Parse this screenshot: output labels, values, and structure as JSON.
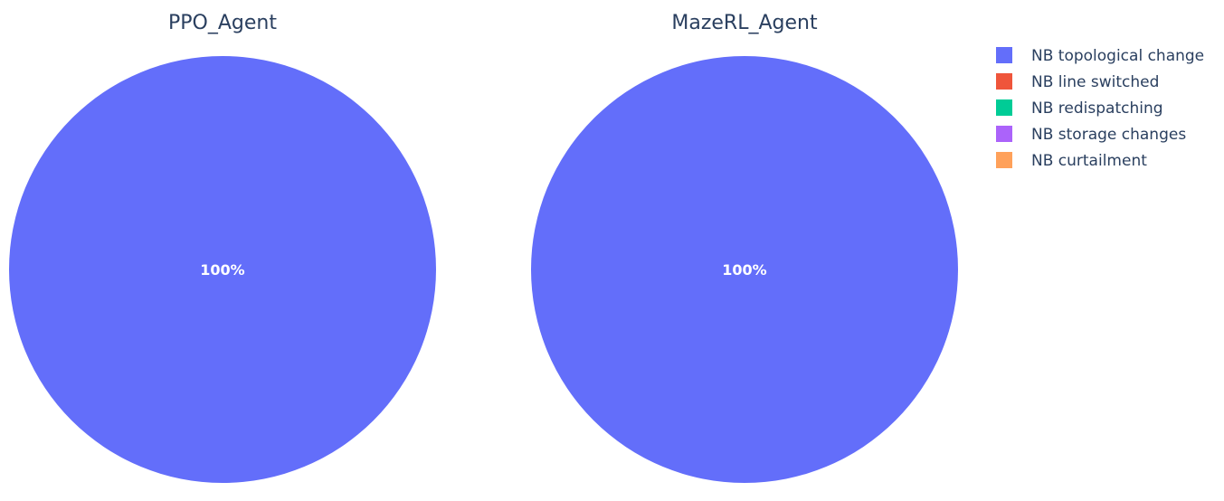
{
  "chart_data": {
    "type": "pie",
    "legend": {
      "placement": "top-right",
      "entries": [
        {
          "label": "NB topological change",
          "color": "#636efa"
        },
        {
          "label": "NB line switched",
          "color": "#EF553B"
        },
        {
          "label": "NB redispatching",
          "color": "#00cc96"
        },
        {
          "label": "NB storage changes",
          "color": "#ab63fa"
        },
        {
          "label": "NB curtailment",
          "color": "#FFA15A"
        }
      ]
    },
    "charts": [
      {
        "title": "PPO_Agent",
        "slices": [
          {
            "label": "NB topological change",
            "value": 100,
            "text": "100%"
          },
          {
            "label": "NB line switched",
            "value": 0,
            "text": ""
          },
          {
            "label": "NB redispatching",
            "value": 0,
            "text": ""
          },
          {
            "label": "NB storage changes",
            "value": 0,
            "text": ""
          },
          {
            "label": "NB curtailment",
            "value": 0,
            "text": ""
          }
        ]
      },
      {
        "title": "MazeRL_Agent",
        "slices": [
          {
            "label": "NB topological change",
            "value": 100,
            "text": "100%"
          },
          {
            "label": "NB line switched",
            "value": 0,
            "text": ""
          },
          {
            "label": "NB redispatching",
            "value": 0,
            "text": ""
          },
          {
            "label": "NB storage changes",
            "value": 0,
            "text": ""
          },
          {
            "label": "NB curtailment",
            "value": 0,
            "text": ""
          }
        ]
      }
    ]
  }
}
